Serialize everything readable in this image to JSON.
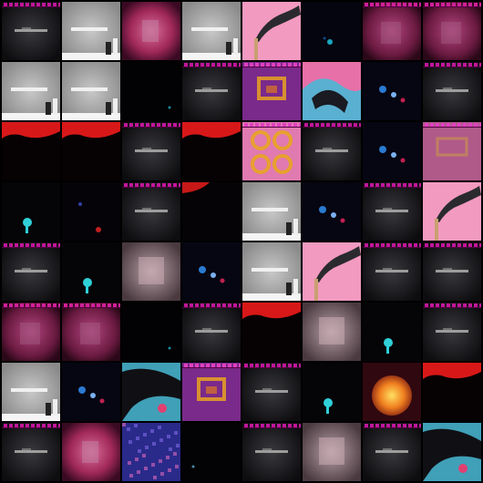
{
  "grid": {
    "rows": 8,
    "cols": 8,
    "separator_color": "#000000",
    "tiles": [
      [
        "dark-gray-banner",
        "gray-building",
        "pink-blur",
        "gray-building",
        "pink-smoke",
        "dark-blue-speck",
        "magenta-blur",
        "magenta-blur"
      ],
      [
        "gray-building",
        "gray-building",
        "black",
        "dark-gray-banner",
        "purple-ornament",
        "pink-blue-swirl",
        "dark-blue-dots",
        "dark-gray-banner"
      ],
      [
        "red-black",
        "red-black",
        "dark-gray-banner",
        "red-black",
        "orange-rings",
        "dark-gray-banner",
        "dark-blue-dots",
        "pink-ornament"
      ],
      [
        "dark-cyan-blob",
        "dark-red-speck",
        "dark-gray-banner",
        "dark-red-corner",
        "gray-building",
        "dark-blue-dots",
        "dark-gray-banner",
        "pink-smoke"
      ],
      [
        "dark-gray-banner",
        "dark-cyan-blob",
        "gray-pink-blur",
        "dark-blue-dots",
        "gray-building",
        "pink-smoke",
        "dark-gray-banner",
        "dark-gray-banner"
      ],
      [
        "magenta-blur",
        "magenta-blur",
        "black",
        "dark-gray-banner",
        "red-black",
        "gray-pink-blur",
        "dark-cyan-blob",
        "dark-gray-banner"
      ],
      [
        "gray-building",
        "dark-blue-dots",
        "cyan-black-swirl",
        "purple-ornament",
        "dark-gray-banner",
        "dark-cyan-blob",
        "orange-burst",
        "red-black"
      ],
      [
        "dark-gray-banner",
        "pink-blur",
        "blue-purple-noise",
        "dark-speck",
        "dark-gray-banner",
        "gray-pink-blur",
        "dark-gray-banner",
        "cyan-black-swirl"
      ]
    ]
  }
}
